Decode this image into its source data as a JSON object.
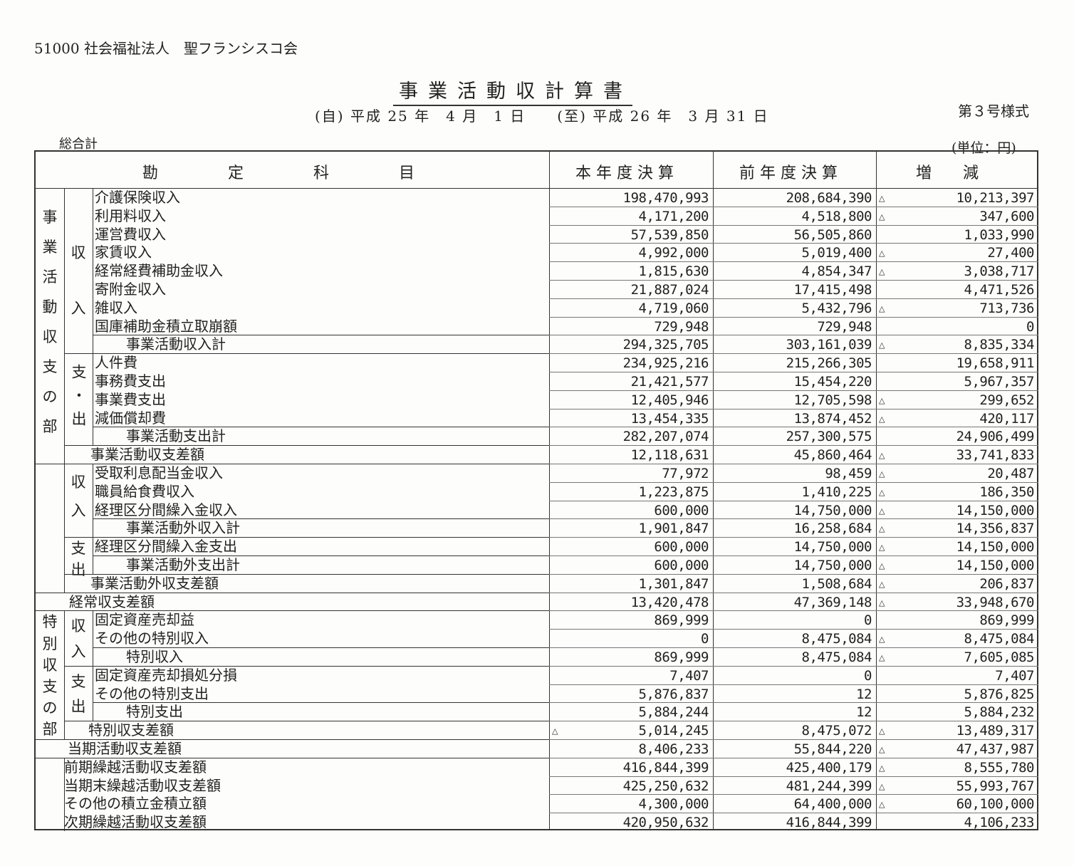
{
  "header": {
    "organization": "51000 社会福祉法人　聖フランシスコ会",
    "title": "事業活動収計算書",
    "period": "(自) 平成 25 年　4 月　1 日　　(至) 平成 26 年　3 月 31 日",
    "form_number": "第３号様式",
    "scope": "総合計",
    "unit": "(単位：円)"
  },
  "columns": {
    "account": "勘　　　　定　　　　科　　　　目",
    "current": "本 年 度 決 算",
    "prior": "前 年 度 決 算",
    "change": "増　　減"
  },
  "negative_mark": "△",
  "group_labels": {
    "operating_section": "事業活動収支の部",
    "special_section": "特別収支の部",
    "income": "収入",
    "expense_op": "支・出",
    "income2": "収入",
    "expense2": "支出",
    "income3": "収入",
    "expense3": "支出"
  },
  "rows": [
    {
      "label": "介護保険収入",
      "current": "198,470,993",
      "prior": "208,684,390",
      "change": "10,213,397",
      "change_neg": true
    },
    {
      "label": "利用料収入",
      "current": "4,171,200",
      "prior": "4,518,800",
      "change": "347,600",
      "change_neg": true
    },
    {
      "label": "運営費収入",
      "current": "57,539,850",
      "prior": "56,505,860",
      "change": "1,033,990"
    },
    {
      "label": "家賃収入",
      "current": "4,992,000",
      "prior": "5,019,400",
      "change": "27,400",
      "change_neg": true
    },
    {
      "label": "経常経費補助金収入",
      "current": "1,815,630",
      "prior": "4,854,347",
      "change": "3,038,717",
      "change_neg": true
    },
    {
      "label": "寄附金収入",
      "current": "21,887,024",
      "prior": "17,415,498",
      "change": "4,471,526"
    },
    {
      "label": "雑収入",
      "current": "4,719,060",
      "prior": "5,432,796",
      "change": "713,736",
      "change_neg": true
    },
    {
      "label": "国庫補助金積立取崩額",
      "current": "729,948",
      "prior": "729,948",
      "change": "0"
    },
    {
      "label": "事業活動収入計",
      "current": "294,325,705",
      "prior": "303,161,039",
      "change": "8,835,334",
      "change_neg": true
    },
    {
      "label": "人件費",
      "current": "234,925,216",
      "prior": "215,266,305",
      "change": "19,658,911"
    },
    {
      "label": "事務費支出",
      "current": "21,421,577",
      "prior": "15,454,220",
      "change": "5,967,357"
    },
    {
      "label": "事業費支出",
      "current": "12,405,946",
      "prior": "12,705,598",
      "change": "299,652",
      "change_neg": true
    },
    {
      "label": "減価償却費",
      "current": "13,454,335",
      "prior": "13,874,452",
      "change": "420,117",
      "change_neg": true
    },
    {
      "label": "事業活動支出計",
      "current": "282,207,074",
      "prior": "257,300,575",
      "change": "24,906,499"
    },
    {
      "label": "事業活動収支差額",
      "current": "12,118,631",
      "prior": "45,860,464",
      "change": "33,741,833",
      "change_neg": true
    },
    {
      "label": "受取利息配当金収入",
      "current": "77,972",
      "prior": "98,459",
      "change": "20,487",
      "change_neg": true
    },
    {
      "label": "職員給食費収入",
      "current": "1,223,875",
      "prior": "1,410,225",
      "change": "186,350",
      "change_neg": true
    },
    {
      "label": "経理区分間繰入金収入",
      "current": "600,000",
      "prior": "14,750,000",
      "change": "14,150,000",
      "change_neg": true
    },
    {
      "label": "事業活動外収入計",
      "current": "1,901,847",
      "prior": "16,258,684",
      "change": "14,356,837",
      "change_neg": true
    },
    {
      "label": "経理区分間繰入金支出",
      "current": "600,000",
      "prior": "14,750,000",
      "change": "14,150,000",
      "change_neg": true
    },
    {
      "label": "事業活動外支出計",
      "current": "600,000",
      "prior": "14,750,000",
      "change": "14,150,000",
      "change_neg": true
    },
    {
      "label": "事業活動外収支差額",
      "current": "1,301,847",
      "prior": "1,508,684",
      "change": "206,837",
      "change_neg": true
    },
    {
      "label": "経常収支差額",
      "current": "13,420,478",
      "prior": "47,369,148",
      "change": "33,948,670",
      "change_neg": true
    },
    {
      "label": "固定資産売却益",
      "current": "869,999",
      "prior": "0",
      "change": "869,999"
    },
    {
      "label": "その他の特別収入",
      "current": "0",
      "prior": "8,475,084",
      "change": "8,475,084",
      "change_neg": true
    },
    {
      "label": "特別収入",
      "current": "869,999",
      "prior": "8,475,084",
      "change": "7,605,085",
      "change_neg": true
    },
    {
      "label": "固定資産売却損処分損",
      "current": "7,407",
      "prior": "0",
      "change": "7,407"
    },
    {
      "label": "その他の特別支出",
      "current": "5,876,837",
      "prior": "12",
      "change": "5,876,825"
    },
    {
      "label": "特別支出",
      "current": "5,884,244",
      "prior": "12",
      "change": "5,884,232"
    },
    {
      "label": "特別収支差額",
      "current": "5,014,245",
      "current_neg": true,
      "prior": "8,475,072",
      "change": "13,489,317",
      "change_neg": true
    },
    {
      "label": "当期活動収支差額",
      "current": "8,406,233",
      "prior": "55,844,220",
      "change": "47,437,987",
      "change_neg": true
    },
    {
      "label": "前期繰越活動収支差額",
      "current": "416,844,399",
      "prior": "425,400,179",
      "change": "8,555,780",
      "change_neg": true
    },
    {
      "label": "当期末繰越活動収支差額",
      "current": "425,250,632",
      "prior": "481,244,399",
      "change": "55,993,767",
      "change_neg": true
    },
    {
      "label": "その他の積立金積立額",
      "current": "4,300,000",
      "prior": "64,400,000",
      "change": "60,100,000",
      "change_neg": true
    },
    {
      "label": "次期繰越活動収支差額",
      "current": "420,950,632",
      "prior": "416,844,399",
      "change": "4,106,233"
    }
  ]
}
